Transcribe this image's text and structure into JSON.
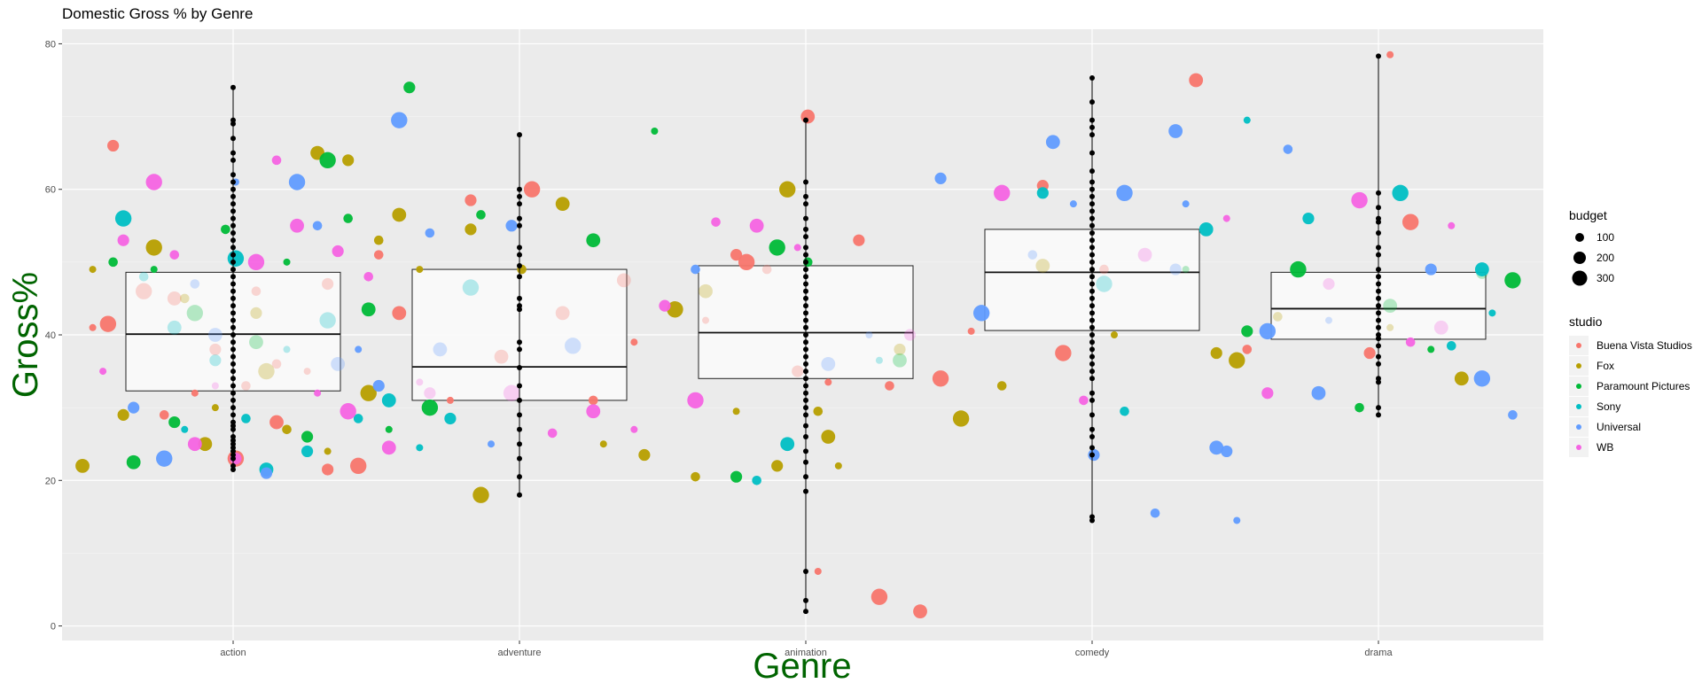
{
  "chart_data": {
    "type": "box-jitter",
    "title": "Domestic Gross % by Genre",
    "xlabel": "Genre",
    "ylabel": "Gross%",
    "categories": [
      "action",
      "adventure",
      "animation",
      "comedy",
      "drama"
    ],
    "ylim": [
      -2,
      82
    ],
    "yticks": [
      0,
      20,
      40,
      60,
      80
    ],
    "grid": true,
    "legend_position": "right",
    "boxes": [
      {
        "category": "action",
        "q1": 32.3,
        "median": 40.1,
        "q3": 48.6
      },
      {
        "category": "adventure",
        "q1": 31.0,
        "median": 35.6,
        "q3": 49.0
      },
      {
        "category": "animation",
        "q1": 34.0,
        "median": 40.3,
        "q3": 49.5
      },
      {
        "category": "comedy",
        "q1": 40.6,
        "median": 48.6,
        "q3": 54.5
      },
      {
        "category": "drama",
        "q1": 39.4,
        "median": 43.6,
        "q3": 48.6
      }
    ],
    "strip_points": [
      {
        "category": "action",
        "values": [
          21.5,
          22,
          23,
          23.5,
          24,
          24.5,
          25,
          25.5,
          26,
          27,
          27.5,
          28,
          29,
          30,
          31,
          32,
          33,
          34,
          35,
          36,
          37,
          38,
          39,
          40,
          41,
          42,
          43,
          44,
          45,
          46,
          47,
          48,
          49,
          50,
          51,
          52,
          53,
          54,
          55,
          56,
          57,
          58,
          59,
          60,
          61,
          62,
          64,
          65,
          67,
          69,
          69.5,
          74
        ]
      },
      {
        "category": "adventure",
        "values": [
          18,
          20.5,
          23,
          25,
          27,
          29,
          31,
          33,
          35.5,
          38,
          39,
          43.5,
          44,
          45,
          48,
          49.5,
          51,
          52,
          55,
          56,
          58,
          59,
          60,
          67.5
        ]
      },
      {
        "category": "animation",
        "values": [
          2,
          3.5,
          7.5,
          18.5,
          20.5,
          22.5,
          24,
          26,
          27.5,
          29,
          30,
          31,
          32,
          33,
          34,
          35,
          36,
          37,
          38,
          39,
          40,
          41,
          42,
          43,
          44,
          45,
          46,
          47,
          48,
          49,
          50,
          51,
          52,
          53.5,
          54.5,
          56,
          58,
          59,
          61,
          69.5
        ]
      },
      {
        "category": "comedy",
        "values": [
          14.5,
          15,
          23.5,
          24.5,
          26,
          27,
          29,
          31,
          32,
          34,
          35,
          36,
          37,
          38,
          39,
          40,
          41,
          42,
          43,
          44,
          45,
          46,
          47,
          48,
          49,
          50,
          51,
          52,
          53,
          54,
          55,
          56,
          57,
          58,
          59,
          60,
          61,
          62.5,
          65,
          67.5,
          68.5,
          69.5,
          72,
          75.3
        ]
      },
      {
        "category": "drama",
        "values": [
          29,
          30,
          33.5,
          34,
          36,
          37,
          38.5,
          39.5,
          40,
          41,
          42,
          43,
          44,
          45,
          46,
          47,
          48,
          49,
          51,
          52,
          54,
          55.5,
          56,
          57.5,
          59.5,
          78.3
        ]
      }
    ],
    "series": [
      {
        "name": "Buena Vista Studios",
        "color": "#F8766D",
        "points": [
          [
            0.3,
            41
          ],
          [
            0.5,
            66
          ],
          [
            0.8,
            46
          ],
          [
            1.0,
            29
          ],
          [
            1.1,
            45
          ],
          [
            1.3,
            32
          ],
          [
            1.5,
            38
          ],
          [
            1.7,
            23
          ],
          [
            1.8,
            33
          ],
          [
            2.1,
            28
          ],
          [
            2.4,
            35
          ],
          [
            2.6,
            47
          ],
          [
            2.9,
            22
          ],
          [
            3.1,
            51
          ],
          [
            3.3,
            43
          ],
          [
            3.8,
            31
          ],
          [
            4.0,
            58.5
          ],
          [
            4.6,
            60
          ],
          [
            5.2,
            31
          ],
          [
            5.5,
            47.5
          ],
          [
            6.3,
            42
          ],
          [
            6.6,
            51
          ],
          [
            6.7,
            50
          ],
          [
            6.9,
            49
          ],
          [
            7.3,
            70
          ],
          [
            7.5,
            33.5
          ],
          [
            7.8,
            53
          ],
          [
            8.0,
            4
          ],
          [
            8.1,
            33
          ],
          [
            8.4,
            2
          ],
          [
            8.9,
            40.5
          ],
          [
            9.6,
            60.5
          ],
          [
            9.8,
            37.5
          ],
          [
            10.2,
            49
          ],
          [
            11.1,
            75
          ],
          [
            13.0,
            78.5
          ],
          [
            12.8,
            37.5
          ],
          [
            13.2,
            55.5
          ],
          [
            11.6,
            38
          ],
          [
            4.3,
            37
          ],
          [
            5.6,
            39
          ],
          [
            2.6,
            21.5
          ],
          [
            0.45,
            41.5
          ],
          [
            1.9,
            46
          ],
          [
            4.9,
            43
          ],
          [
            7.4,
            7.5
          ],
          [
            7.2,
            35
          ],
          [
            8.6,
            34
          ],
          [
            2.1,
            36
          ]
        ]
      },
      {
        "name": "Fox",
        "color": "#B79F00",
        "points": [
          [
            0.2,
            22
          ],
          [
            0.3,
            49
          ],
          [
            0.6,
            29
          ],
          [
            0.9,
            52
          ],
          [
            1.2,
            45
          ],
          [
            1.4,
            25
          ],
          [
            1.5,
            30
          ],
          [
            1.9,
            43
          ],
          [
            2.0,
            35
          ],
          [
            2.2,
            27
          ],
          [
            2.5,
            65
          ],
          [
            2.6,
            24
          ],
          [
            2.8,
            64
          ],
          [
            3.0,
            32
          ],
          [
            3.1,
            53
          ],
          [
            3.3,
            56.5
          ],
          [
            3.5,
            49
          ],
          [
            4.0,
            54.5
          ],
          [
            4.1,
            18
          ],
          [
            4.5,
            49
          ],
          [
            4.9,
            58
          ],
          [
            5.3,
            25
          ],
          [
            5.7,
            23.5
          ],
          [
            6.0,
            43.5
          ],
          [
            6.2,
            20.5
          ],
          [
            6.3,
            46
          ],
          [
            6.6,
            29.5
          ],
          [
            7.0,
            22
          ],
          [
            7.1,
            60
          ],
          [
            7.4,
            29.5
          ],
          [
            7.5,
            26
          ],
          [
            7.6,
            22
          ],
          [
            8.2,
            38
          ],
          [
            8.8,
            28.5
          ],
          [
            9.2,
            33
          ],
          [
            9.6,
            49.5
          ],
          [
            10.3,
            40
          ],
          [
            11.3,
            37.5
          ],
          [
            11.5,
            36.5
          ],
          [
            11.9,
            42.5
          ],
          [
            13.7,
            34
          ],
          [
            13.0,
            41
          ]
        ]
      },
      {
        "name": "Paramount Pictures",
        "color": "#00BA38",
        "points": [
          [
            0.5,
            50
          ],
          [
            0.7,
            22.5
          ],
          [
            0.9,
            49
          ],
          [
            1.1,
            28
          ],
          [
            1.3,
            43
          ],
          [
            1.6,
            54.5
          ],
          [
            1.9,
            39
          ],
          [
            2.2,
            50
          ],
          [
            2.4,
            26
          ],
          [
            2.6,
            64
          ],
          [
            2.8,
            56
          ],
          [
            3.0,
            43.5
          ],
          [
            3.2,
            27
          ],
          [
            3.4,
            74
          ],
          [
            3.6,
            30
          ],
          [
            4.1,
            56.5
          ],
          [
            5.2,
            53
          ],
          [
            5.8,
            68
          ],
          [
            6.6,
            20.5
          ],
          [
            7.0,
            52
          ],
          [
            7.3,
            50
          ],
          [
            8.2,
            36.5
          ],
          [
            11.0,
            49
          ],
          [
            11.6,
            40.5
          ],
          [
            12.1,
            49
          ],
          [
            12.7,
            30
          ],
          [
            13.0,
            44
          ],
          [
            13.4,
            38
          ],
          [
            13.9,
            48.5
          ],
          [
            14.2,
            47.5
          ]
        ]
      },
      {
        "name": "Sony",
        "color": "#00BFC4",
        "points": [
          [
            0.6,
            56
          ],
          [
            0.8,
            48
          ],
          [
            1.1,
            41
          ],
          [
            1.2,
            27
          ],
          [
            1.5,
            36.5
          ],
          [
            1.7,
            50.5
          ],
          [
            1.8,
            28.5
          ],
          [
            2.0,
            21.5
          ],
          [
            2.2,
            38
          ],
          [
            2.4,
            24
          ],
          [
            2.6,
            42
          ],
          [
            2.9,
            28.5
          ],
          [
            3.2,
            31
          ],
          [
            3.5,
            24.5
          ],
          [
            3.8,
            28.5
          ],
          [
            4.0,
            46.5
          ],
          [
            6.8,
            20
          ],
          [
            7.1,
            25
          ],
          [
            8.0,
            36.5
          ],
          [
            9.6,
            59.5
          ],
          [
            10.2,
            47
          ],
          [
            10.4,
            29.5
          ],
          [
            11.2,
            54.5
          ],
          [
            11.6,
            69.5
          ],
          [
            12.2,
            56
          ],
          [
            13.1,
            59.5
          ],
          [
            13.6,
            38.5
          ],
          [
            13.9,
            49
          ],
          [
            14.0,
            43
          ]
        ]
      },
      {
        "name": "Universal",
        "color": "#619CFF",
        "points": [
          [
            0.7,
            30
          ],
          [
            1.0,
            23
          ],
          [
            1.3,
            47
          ],
          [
            1.5,
            40
          ],
          [
            1.7,
            61
          ],
          [
            2.0,
            21
          ],
          [
            2.3,
            61
          ],
          [
            2.5,
            55
          ],
          [
            2.7,
            36
          ],
          [
            2.9,
            38
          ],
          [
            3.1,
            33
          ],
          [
            3.3,
            69.5
          ],
          [
            3.6,
            54
          ],
          [
            3.7,
            38
          ],
          [
            4.2,
            25
          ],
          [
            4.4,
            55
          ],
          [
            5.0,
            38.5
          ],
          [
            6.2,
            49
          ],
          [
            7.5,
            36
          ],
          [
            7.9,
            40
          ],
          [
            8.6,
            61.5
          ],
          [
            9.0,
            43
          ],
          [
            9.5,
            51
          ],
          [
            9.7,
            66.5
          ],
          [
            9.9,
            58
          ],
          [
            10.1,
            23.5
          ],
          [
            10.4,
            59.5
          ],
          [
            10.7,
            15.5
          ],
          [
            10.9,
            68
          ],
          [
            11.0,
            58
          ],
          [
            11.4,
            24
          ],
          [
            11.8,
            40.5
          ],
          [
            12.0,
            65.5
          ],
          [
            12.3,
            32
          ],
          [
            12.4,
            42
          ],
          [
            13.4,
            49
          ],
          [
            13.9,
            34
          ],
          [
            14.2,
            29
          ],
          [
            11.3,
            24.5
          ],
          [
            11.5,
            14.5
          ],
          [
            10.9,
            49
          ]
        ]
      },
      {
        "name": "WB",
        "color": "#F564E3",
        "points": [
          [
            0.4,
            35
          ],
          [
            0.6,
            53
          ],
          [
            0.9,
            61
          ],
          [
            1.1,
            51
          ],
          [
            1.3,
            25
          ],
          [
            1.5,
            33
          ],
          [
            1.7,
            23
          ],
          [
            1.9,
            50
          ],
          [
            2.1,
            64
          ],
          [
            2.3,
            55
          ],
          [
            2.5,
            32
          ],
          [
            2.7,
            51.5
          ],
          [
            2.8,
            29.5
          ],
          [
            3.0,
            48
          ],
          [
            3.2,
            24.5
          ],
          [
            3.5,
            33.5
          ],
          [
            3.6,
            32
          ],
          [
            4.4,
            32
          ],
          [
            4.8,
            26.5
          ],
          [
            5.2,
            29.5
          ],
          [
            5.6,
            27
          ],
          [
            5.9,
            44
          ],
          [
            6.2,
            31
          ],
          [
            6.4,
            55.5
          ],
          [
            6.8,
            55
          ],
          [
            7.2,
            52
          ],
          [
            8.3,
            40
          ],
          [
            9.2,
            59.5
          ],
          [
            10.0,
            31
          ],
          [
            10.6,
            51
          ],
          [
            11.4,
            56
          ],
          [
            11.8,
            32
          ],
          [
            12.7,
            58.5
          ],
          [
            13.2,
            39
          ],
          [
            13.5,
            41
          ],
          [
            13.6,
            55
          ],
          [
            12.4,
            47
          ]
        ]
      }
    ],
    "size_legend": {
      "title": "budget",
      "values": [
        100,
        200,
        300
      ]
    },
    "color_legend_title": "studio"
  }
}
